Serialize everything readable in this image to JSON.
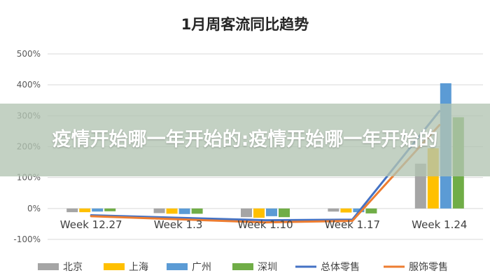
{
  "chart_data": {
    "type": "bar",
    "title": "1月周客流同比趋势",
    "categories": [
      "Week 12.27",
      "Week 1.3",
      "Week 1.10",
      "Week 1.17",
      "Week 1.24"
    ],
    "series": [
      {
        "name": "北京",
        "kind": "bar",
        "color": "#a5a5a5",
        "values": [
          -0.12,
          -0.15,
          -0.28,
          -0.1,
          1.45
        ]
      },
      {
        "name": "上海",
        "kind": "bar",
        "color": "#ffc000",
        "values": [
          -0.12,
          -0.17,
          -0.3,
          -0.13,
          1.95
        ]
      },
      {
        "name": "广州",
        "kind": "bar",
        "color": "#5b9bd5",
        "values": [
          -0.1,
          -0.18,
          -0.25,
          -0.12,
          4.05
        ]
      },
      {
        "name": "深圳",
        "kind": "bar",
        "color": "#70ad47",
        "values": [
          -0.09,
          -0.17,
          -0.28,
          -0.16,
          2.95
        ]
      },
      {
        "name": "总体零售",
        "kind": "line",
        "color": "#4472c4",
        "values": [
          -0.22,
          -0.3,
          -0.38,
          -0.36,
          3.15
        ]
      },
      {
        "name": "服饰零售",
        "kind": "line",
        "color": "#ed7d31",
        "values": [
          -0.25,
          -0.35,
          -0.45,
          -0.4,
          2.7
        ]
      }
    ],
    "ylim": [
      -1,
      5
    ],
    "yticks": [
      "-100%",
      "0%",
      "100%",
      "200%",
      "300%",
      "400%",
      "500%"
    ],
    "ytick_values": [
      -1,
      0,
      1,
      2,
      3,
      4,
      5
    ],
    "grid": true,
    "legend": "bottom"
  },
  "overlay": {
    "text": "疫情开始哪一年开始的:疫情开始哪一年开始的"
  }
}
